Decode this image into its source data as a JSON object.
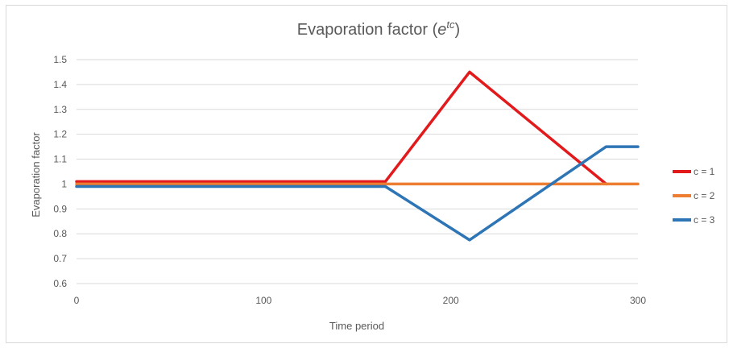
{
  "chart_data": {
    "type": "line",
    "title": "Evaporation factor (",
    "title_math_base": "e",
    "title_math_sup": "tc",
    "title_suffix": ")",
    "xlabel": "Time period",
    "ylabel": "Evaporation factor",
    "xlim": [
      0,
      300
    ],
    "ylim": [
      0.6,
      1.5
    ],
    "xticks": [
      0,
      100,
      200,
      300
    ],
    "yticks": [
      0.6,
      0.7,
      0.8,
      0.9,
      1,
      1.1,
      1.2,
      1.3,
      1.4,
      1.5
    ],
    "ytick_labels": [
      "0.6",
      "0.7",
      "0.8",
      "0.9",
      "1",
      "1.1",
      "1.2",
      "1.3",
      "1.4",
      "1.5"
    ],
    "xtick_labels": [
      "0",
      "100",
      "200",
      "300"
    ],
    "grid": "horizontal",
    "legend_position": "right",
    "series": [
      {
        "name": "c = 1",
        "color": "#e31a1c",
        "x": [
          0,
          165,
          210,
          283
        ],
        "y": [
          1.01,
          1.01,
          1.45,
          1.0
        ]
      },
      {
        "name": "c = 2",
        "color": "#ed7d31",
        "x": [
          0,
          300
        ],
        "y": [
          1.0,
          1.0
        ]
      },
      {
        "name": "c = 3",
        "color": "#2e75b6",
        "x": [
          0,
          165,
          210,
          283,
          300
        ],
        "y": [
          0.99,
          0.99,
          0.775,
          1.15,
          1.15
        ]
      }
    ]
  }
}
